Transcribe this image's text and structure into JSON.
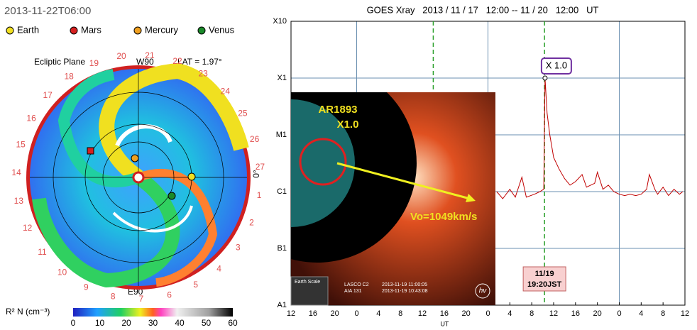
{
  "enlil": {
    "timestamp": "2013-11-22T06:00",
    "legend": [
      "Earth",
      "Mars",
      "Mercury",
      "Venus"
    ],
    "legend_colors": [
      "#f2e020",
      "#d62020",
      "#f0a020",
      "#1a8a2a"
    ],
    "plane": "Ecliptic Plane",
    "top_label": "W90",
    "lat": "LAT = 1.97°",
    "bottom_label": "E90",
    "right_label": "0°",
    "rim_numbers": [
      "20",
      "21",
      "22",
      "23",
      "24",
      "25",
      "26",
      "27",
      "1",
      "2",
      "3",
      "4",
      "5",
      "6",
      "7",
      "8",
      "9",
      "10",
      "11",
      "12",
      "13",
      "14",
      "15",
      "16",
      "17",
      "18",
      "19"
    ],
    "colorbar": {
      "label": "R² N (cm⁻³)",
      "ticks": [
        0,
        10,
        20,
        30,
        40,
        50,
        60
      ]
    }
  },
  "inset": {
    "region": "AR1893",
    "flare": "X1.0",
    "speed": "Vo=1049km/s",
    "scale": "Earth Scale",
    "instruments": [
      "LASCO C2",
      "AIA 131"
    ],
    "times": [
      "2013-11-19 11:00:05",
      "2013-11-19 10:43:08"
    ],
    "logo": "hv"
  },
  "chart_data": {
    "type": "line",
    "title": "GOES Xray   2013 / 11 / 17   12:00 -- 11 / 20   12:00   UT",
    "xlabel": "UT",
    "log_y": true,
    "grid": true,
    "color": "#c00000",
    "x": [
      37.6,
      38.7,
      40,
      41,
      42.2,
      43,
      44.5,
      45.5,
      46.2,
      46.43,
      46.8,
      47.3,
      48,
      49,
      50,
      51,
      52,
      53.2,
      54,
      55.5,
      56,
      57,
      58,
      59,
      60,
      61,
      62,
      63,
      64,
      65,
      65.5,
      66.5,
      67,
      68,
      69,
      70,
      71,
      71.6
    ],
    "values": [
      1e-06,
      7.5e-07,
      1.1e-06,
      8e-07,
      1.8e-06,
      8e-07,
      9e-07,
      1e-06,
      1.1e-06,
      0.0001,
      2.4e-05,
      1e-05,
      4e-06,
      2.5e-06,
      1.7e-06,
      1.3e-06,
      1.5e-06,
      2e-06,
      1.2e-06,
      1.4e-06,
      2.2e-06,
      1.1e-06,
      1.3e-06,
      1e-06,
      9e-07,
      8.5e-07,
      9e-07,
      8.5e-07,
      9e-07,
      1.1e-06,
      2e-06,
      1.1e-06,
      9e-07,
      1.2e-06,
      8.5e-07,
      1.1e-06,
      9e-07,
      1e-06
    ],
    "xlim": [
      0,
      72
    ],
    "xticks": [
      {
        "value": 0,
        "label": "12"
      },
      {
        "value": 4,
        "label": "16"
      },
      {
        "value": 8,
        "label": "20"
      },
      {
        "value": 12,
        "label": "0"
      },
      {
        "value": 16,
        "label": "4"
      },
      {
        "value": 20,
        "label": "8"
      },
      {
        "value": 24,
        "label": "12"
      },
      {
        "value": 28,
        "label": "16"
      },
      {
        "value": 32,
        "label": "20"
      },
      {
        "value": 36,
        "label": "0"
      },
      {
        "value": 40,
        "label": "4"
      },
      {
        "value": 44,
        "label": "8"
      },
      {
        "value": 48,
        "label": "12"
      },
      {
        "value": 52,
        "label": "16"
      },
      {
        "value": 56,
        "label": "20"
      },
      {
        "value": 60,
        "label": "0"
      },
      {
        "value": 64,
        "label": "4"
      },
      {
        "value": 68,
        "label": "8"
      },
      {
        "value": 72,
        "label": "12"
      }
    ],
    "xgrid": [
      12,
      36,
      60
    ],
    "ylim": [
      1e-08,
      0.001
    ],
    "yticks": [
      {
        "value": 1e-08,
        "label": "A1"
      },
      {
        "value": 1e-07,
        "label": "B1"
      },
      {
        "value": 1e-06,
        "label": "C1"
      },
      {
        "value": 1e-05,
        "label": "M1"
      },
      {
        "value": 0.0001,
        "label": "X1"
      },
      {
        "value": 0.001,
        "label": "X10"
      }
    ],
    "marker_lines": [
      26,
      46.33
    ],
    "marker_color": "#2ca02c",
    "peak_label": "X 1.0",
    "time_label": [
      "11/19",
      "19:20JST"
    ]
  }
}
